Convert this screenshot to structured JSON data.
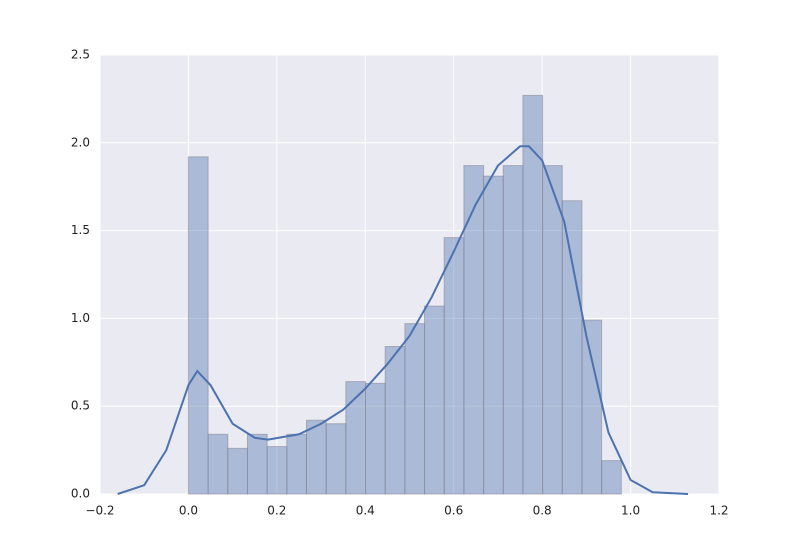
{
  "chart_data": {
    "type": "histogram",
    "bins": [
      0,
      0.0445,
      0.089,
      0.1335,
      0.178,
      0.2225,
      0.267,
      0.3115,
      0.356,
      0.4005,
      0.445,
      0.4895,
      0.534,
      0.5785,
      0.623,
      0.6675,
      0.712,
      0.7565,
      0.801,
      0.8455,
      0.89,
      0.9345,
      0.979
    ],
    "values": [
      1.92,
      0.34,
      0.26,
      0.34,
      0.27,
      0.34,
      0.42,
      0.4,
      0.64,
      0.63,
      0.84,
      0.97,
      1.07,
      1.46,
      1.87,
      1.81,
      1.87,
      2.27,
      1.87,
      1.67,
      0.99,
      0.19
    ],
    "color": "#4c72b0",
    "kde": {
      "x": [
        -0.16,
        -0.1,
        -0.05,
        0,
        0.02,
        0.05,
        0.1,
        0.15,
        0.18,
        0.25,
        0.3,
        0.35,
        0.4,
        0.45,
        0.5,
        0.55,
        0.6,
        0.65,
        0.7,
        0.75,
        0.77,
        0.8,
        0.85,
        0.9,
        0.95,
        1.0,
        1.05,
        1.13
      ],
      "y": [
        0.0,
        0.05,
        0.25,
        0.62,
        0.7,
        0.62,
        0.4,
        0.32,
        0.31,
        0.34,
        0.4,
        0.48,
        0.6,
        0.74,
        0.9,
        1.12,
        1.38,
        1.65,
        1.87,
        1.98,
        1.98,
        1.9,
        1.55,
        0.9,
        0.35,
        0.08,
        0.01,
        0.0
      ],
      "color": "#4c72b0"
    },
    "xlim": [
      -0.2,
      1.2
    ],
    "ylim": [
      0,
      2.5
    ],
    "xticks": [
      {
        "value": -0.2,
        "label": "−0.2"
      },
      {
        "value": 0,
        "label": "0.0"
      },
      0.2,
      0.4,
      0.6,
      0.8,
      {
        "value": 1,
        "label": "1.0"
      },
      1.2
    ],
    "yticks": [
      {
        "value": 0,
        "label": "0.0"
      },
      0.5,
      {
        "value": 1,
        "label": "1.0"
      },
      1.5,
      {
        "value": 2,
        "label": "2.0"
      },
      2.5
    ],
    "grid": true,
    "background": "#eaeaf2"
  }
}
